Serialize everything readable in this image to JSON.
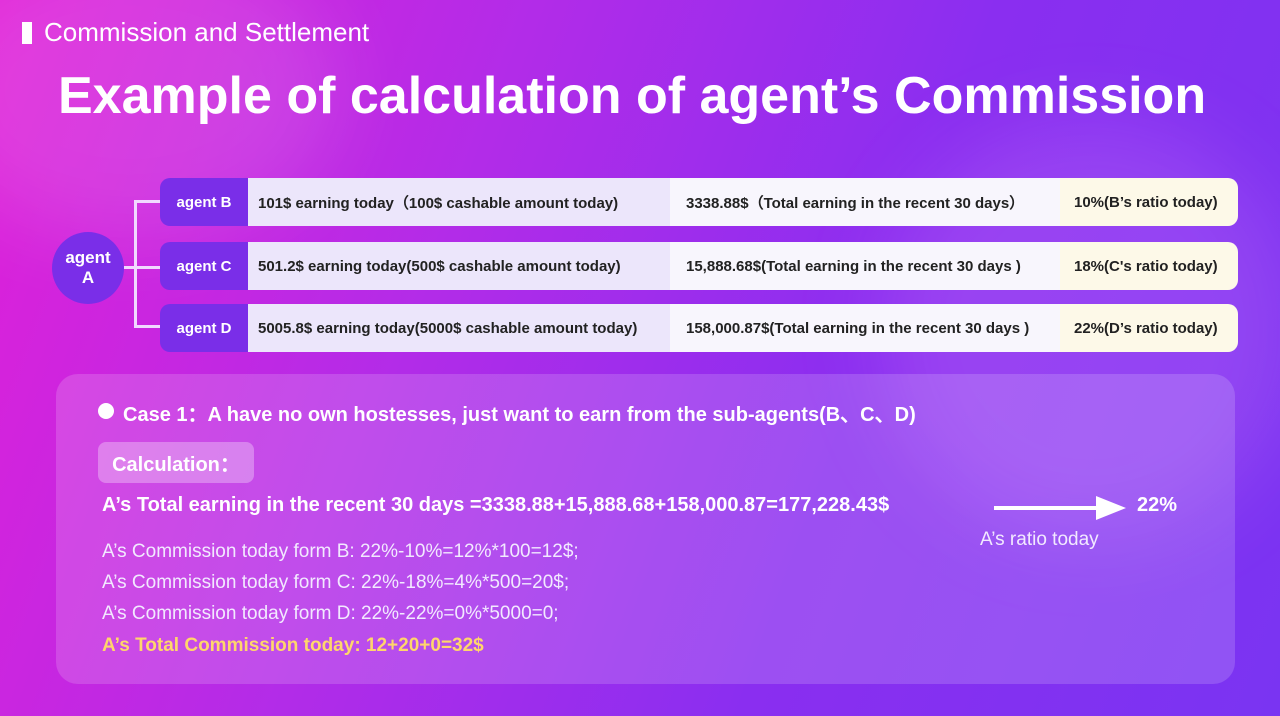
{
  "header": {
    "section": "Commission and Settlement",
    "title": "Example of calculation of agent’s  Commission"
  },
  "tree": {
    "root": "agent A",
    "rows": [
      {
        "agent": "agent B",
        "earning": "101$ earning today（100$ cashable amount today)",
        "total": "3338.88$（Total earning in the recent 30 days）",
        "ratio": "10%(B’s ratio today)"
      },
      {
        "agent": "agent C",
        "earning": "501.2$ earning today(500$ cashable amount today)",
        "total": "15,888.68$(Total earning in the recent 30 days )",
        "ratio": "18%(C's ratio today)"
      },
      {
        "agent": "agent D",
        "earning": "5005.8$ earning today(5000$ cashable amount today)",
        "total": "158,000.87$(Total earning in the recent 30 days )",
        "ratio": "22%(D’s ratio today)"
      }
    ]
  },
  "case": {
    "heading": "Case 1：A have no own hostesses, just want to earn from the sub-agents(B、C、D)",
    "calculation_label": "Calculation：",
    "total_line": "A’s Total earning in the recent 30 days =3338.88+15,888.68+158,000.87=177,228.43$",
    "ratio_value": "22%",
    "ratio_caption": "A’s ratio today",
    "lines": [
      "A’s Commission today form B: 22%-10%=12%*100=12$;",
      "A’s Commission today form C: 22%-18%=4%*500=20$;",
      "A’s Commission today form D: 22%-22%=0%*5000=0;"
    ],
    "result": "A’s Total Commission today: 12+20+0=32$"
  }
}
